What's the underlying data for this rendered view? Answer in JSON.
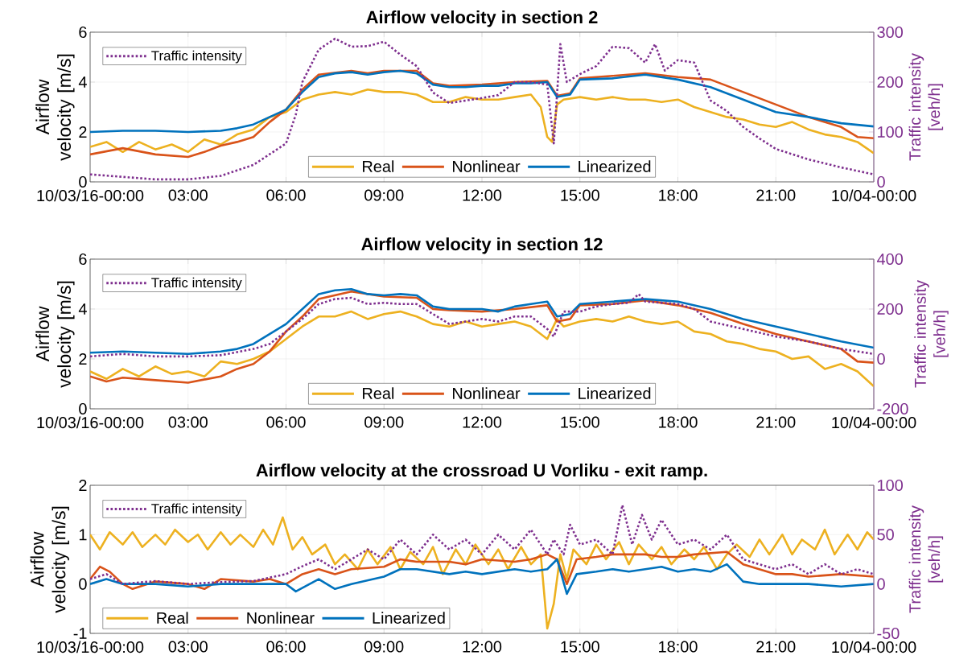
{
  "chart_data": [
    {
      "type": "line",
      "title": "Airflow velocity in section 2",
      "ylabel": "Airflow velocity [m/s]",
      "y2label": "Traffic intensity [veh/h]",
      "xlim": [
        0,
        24
      ],
      "xticks": [
        {
          "value": 0,
          "label": "10/03/16-00:00"
        },
        {
          "value": 3,
          "label": "03:00"
        },
        {
          "value": 6,
          "label": "06:00"
        },
        {
          "value": 9,
          "label": "09:00"
        },
        {
          "value": 12,
          "label": "12:00"
        },
        {
          "value": 15,
          "label": "15:00"
        },
        {
          "value": 18,
          "label": "18:00"
        },
        {
          "value": 21,
          "label": "21:00"
        },
        {
          "value": 24,
          "label": "10/04-00:00"
        }
      ],
      "ylim": [
        0,
        6
      ],
      "yticks": [
        0,
        2,
        4,
        6
      ],
      "y2lim": [
        0,
        300
      ],
      "y2ticks": [
        0,
        100,
        200,
        300
      ],
      "grid": true,
      "legend": "bottom",
      "series": [
        {
          "name": "Real",
          "color": "#edb120",
          "line_style": "solid",
          "x": [
            0,
            0.5,
            1,
            1.5,
            2,
            2.5,
            3,
            3.5,
            4,
            4.5,
            5,
            5.5,
            6,
            6.5,
            7,
            7.5,
            8,
            8.5,
            9,
            9.5,
            10,
            10.5,
            11,
            11.5,
            12,
            12.5,
            13,
            13.5,
            13.8,
            14,
            14.15,
            14.3,
            14.5,
            15,
            15.5,
            16,
            16.5,
            17,
            17.5,
            18,
            18.5,
            19,
            19.5,
            20,
            20.5,
            21,
            21.5,
            22,
            22.5,
            23,
            23.5,
            24
          ],
          "values": [
            1.4,
            1.6,
            1.2,
            1.6,
            1.3,
            1.5,
            1.2,
            1.7,
            1.5,
            1.9,
            2.1,
            2.6,
            2.8,
            3.3,
            3.5,
            3.6,
            3.5,
            3.7,
            3.6,
            3.6,
            3.5,
            3.2,
            3.2,
            3.4,
            3.3,
            3.3,
            3.4,
            3.5,
            3.0,
            1.8,
            1.6,
            3.1,
            3.3,
            3.4,
            3.3,
            3.4,
            3.3,
            3.3,
            3.2,
            3.3,
            3.0,
            2.8,
            2.6,
            2.5,
            2.3,
            2.2,
            2.4,
            2.1,
            1.9,
            1.8,
            1.6,
            1.15
          ]
        },
        {
          "name": "Nonlinear",
          "color": "#d95319",
          "line_style": "solid",
          "x": [
            0,
            1,
            2,
            3,
            3.5,
            4,
            4.5,
            5,
            5.5,
            6,
            6.5,
            7,
            8,
            8.5,
            9,
            10,
            10.5,
            11,
            12,
            13,
            14,
            14.3,
            14.7,
            15,
            16,
            17,
            18,
            19,
            20,
            21,
            22,
            23,
            23.5,
            24
          ],
          "values": [
            1.1,
            1.35,
            1.1,
            1.0,
            1.2,
            1.45,
            1.6,
            1.8,
            2.4,
            2.9,
            3.7,
            4.3,
            4.45,
            4.35,
            4.45,
            4.45,
            3.95,
            3.85,
            3.9,
            4.0,
            4.05,
            3.45,
            3.55,
            4.15,
            4.25,
            4.35,
            4.2,
            4.1,
            3.6,
            3.1,
            2.6,
            2.2,
            1.8,
            1.75
          ]
        },
        {
          "name": "Linearized",
          "color": "#0072bd",
          "line_style": "solid",
          "x": [
            0,
            1,
            2,
            3,
            4,
            4.5,
            5,
            5.5,
            6,
            6.5,
            7,
            7.5,
            8,
            8.5,
            9,
            9.5,
            10,
            10.5,
            11,
            11.5,
            12,
            12.5,
            13,
            13.5,
            14,
            14.3,
            14.7,
            15,
            16,
            17,
            18,
            19,
            20,
            21,
            22,
            23,
            24
          ],
          "values": [
            2.0,
            2.05,
            2.05,
            2.0,
            2.05,
            2.15,
            2.3,
            2.6,
            2.9,
            3.6,
            4.2,
            4.35,
            4.4,
            4.3,
            4.4,
            4.45,
            4.35,
            3.9,
            3.8,
            3.8,
            3.85,
            3.85,
            3.95,
            3.95,
            4.0,
            3.4,
            3.5,
            4.1,
            4.15,
            4.3,
            4.1,
            3.8,
            3.3,
            2.8,
            2.6,
            2.35,
            2.22
          ]
        },
        {
          "name": "Traffic intensity",
          "color": "#7e2f8e",
          "line_style": "dotted",
          "axis": "y2",
          "x": [
            0,
            1,
            2,
            3,
            4,
            5,
            6,
            6.3,
            6.5,
            7,
            7.5,
            8,
            8.5,
            9,
            9.5,
            10,
            10.5,
            11,
            11.5,
            12,
            12.5,
            13,
            13.5,
            14,
            14.2,
            14.4,
            14.6,
            15,
            15.5,
            16,
            16.5,
            17,
            17.3,
            17.6,
            18,
            18.5,
            19,
            19.5,
            20,
            20.5,
            21,
            22,
            23,
            24
          ],
          "values": [
            15,
            10,
            5,
            5,
            12,
            34,
            77,
            135,
            200,
            265,
            287,
            271,
            272,
            281,
            255,
            232,
            179,
            158,
            163,
            168,
            174,
            200,
            200,
            195,
            77,
            276,
            200,
            216,
            232,
            271,
            268,
            239,
            276,
            223,
            244,
            239,
            163,
            142,
            110,
            87,
            66,
            45,
            29,
            15
          ]
        }
      ]
    },
    {
      "type": "line",
      "title": "Airflow velocity in section 12",
      "ylabel": "Airflow velocity [m/s]",
      "y2label": "Traffic intensity [veh/h]",
      "xlim": [
        0,
        24
      ],
      "xticks": [
        {
          "value": 0,
          "label": "10/03/16-00:00"
        },
        {
          "value": 3,
          "label": "03:00"
        },
        {
          "value": 6,
          "label": "06:00"
        },
        {
          "value": 9,
          "label": "09:00"
        },
        {
          "value": 12,
          "label": "12:00"
        },
        {
          "value": 15,
          "label": "15:00"
        },
        {
          "value": 18,
          "label": "18:00"
        },
        {
          "value": 21,
          "label": "21:00"
        },
        {
          "value": 24,
          "label": "10/04-00:00"
        }
      ],
      "ylim": [
        0,
        6
      ],
      "yticks": [
        0,
        2,
        4,
        6
      ],
      "y2lim": [
        -200,
        400
      ],
      "y2ticks": [
        -200,
        0,
        200,
        400
      ],
      "grid": true,
      "legend": "bottom",
      "series": [
        {
          "name": "Real",
          "color": "#edb120",
          "line_style": "solid",
          "x": [
            0,
            0.5,
            1,
            1.5,
            2,
            2.5,
            3,
            3.5,
            4,
            4.5,
            5,
            5.5,
            6,
            6.5,
            7,
            7.5,
            8,
            8.5,
            9,
            9.5,
            10,
            10.5,
            11,
            11.5,
            12,
            12.5,
            13,
            13.5,
            14,
            14.3,
            14.5,
            15,
            15.5,
            16,
            16.5,
            17,
            17.5,
            18,
            18.5,
            19,
            19.5,
            20,
            20.5,
            21,
            21.5,
            22,
            22.5,
            23,
            23.5,
            24
          ],
          "values": [
            1.5,
            1.2,
            1.6,
            1.3,
            1.7,
            1.4,
            1.5,
            1.3,
            1.9,
            1.8,
            2.0,
            2.3,
            2.8,
            3.3,
            3.7,
            3.7,
            3.9,
            3.6,
            3.8,
            3.9,
            3.7,
            3.4,
            3.3,
            3.5,
            3.3,
            3.4,
            3.5,
            3.3,
            2.8,
            3.6,
            3.3,
            3.5,
            3.6,
            3.5,
            3.7,
            3.5,
            3.4,
            3.5,
            3.1,
            3.0,
            2.7,
            2.6,
            2.4,
            2.3,
            2.0,
            2.1,
            1.6,
            1.8,
            1.5,
            0.9
          ]
        },
        {
          "name": "Nonlinear",
          "color": "#d95319",
          "line_style": "solid",
          "x": [
            0,
            0.5,
            1,
            2,
            3,
            4,
            4.5,
            5,
            5.5,
            6,
            6.5,
            7,
            8,
            9,
            10,
            10.5,
            11,
            12,
            13,
            14,
            14.3,
            14.7,
            15,
            16,
            17,
            18,
            19,
            20,
            21,
            22,
            23,
            23.5,
            24
          ],
          "values": [
            1.3,
            1.1,
            1.25,
            1.15,
            1.05,
            1.3,
            1.6,
            1.8,
            2.3,
            3.1,
            3.7,
            4.4,
            4.7,
            4.5,
            4.45,
            4.0,
            3.95,
            3.9,
            4.0,
            4.15,
            3.5,
            3.6,
            4.15,
            4.2,
            4.35,
            4.15,
            3.85,
            3.4,
            3.0,
            2.7,
            2.4,
            1.9,
            1.85
          ]
        },
        {
          "name": "Linearized",
          "color": "#0072bd",
          "line_style": "solid",
          "x": [
            0,
            1,
            2,
            3,
            4,
            4.5,
            5,
            5.5,
            6,
            6.5,
            7,
            7.5,
            8,
            8.5,
            9,
            9.5,
            10,
            10.5,
            11,
            12,
            12.5,
            13,
            13.5,
            14,
            14.3,
            14.7,
            15,
            16,
            17,
            18,
            19,
            20,
            21,
            22,
            23,
            24
          ],
          "values": [
            2.25,
            2.3,
            2.25,
            2.2,
            2.3,
            2.4,
            2.6,
            3.0,
            3.4,
            4.0,
            4.6,
            4.75,
            4.8,
            4.6,
            4.55,
            4.6,
            4.55,
            4.1,
            4.0,
            4.0,
            3.9,
            4.1,
            4.2,
            4.3,
            3.7,
            3.8,
            4.2,
            4.3,
            4.4,
            4.3,
            4.0,
            3.6,
            3.3,
            3.0,
            2.7,
            2.45
          ]
        },
        {
          "name": "Traffic intensity",
          "color": "#7e2f8e",
          "line_style": "dotted",
          "axis": "y2",
          "x": [
            0,
            1,
            2,
            3,
            4,
            5,
            5.5,
            6,
            6.5,
            7,
            7.5,
            8,
            8.5,
            9,
            9.5,
            10,
            10.5,
            11,
            12,
            12.5,
            13,
            13.5,
            14,
            14.2,
            14.5,
            15,
            15.5,
            16,
            16.5,
            16.8,
            17,
            18,
            18.5,
            19,
            20,
            21,
            22,
            23,
            24
          ],
          "values": [
            10,
            20,
            10,
            10,
            15,
            40,
            60,
            110,
            160,
            220,
            240,
            245,
            220,
            225,
            220,
            220,
            180,
            140,
            160,
            150,
            170,
            170,
            120,
            90,
            190,
            190,
            210,
            220,
            225,
            260,
            230,
            220,
            200,
            150,
            120,
            90,
            70,
            40,
            20
          ]
        }
      ]
    },
    {
      "type": "line",
      "title": "Airflow velocity at the crossroad U Vorliku - exit ramp.",
      "ylabel": "Airflow velocity [m/s]",
      "y2label": "Traffic intensity [veh/h]",
      "xlim": [
        0,
        24
      ],
      "xticks": [
        {
          "value": 0,
          "label": "10/03/16-00:00"
        },
        {
          "value": 3,
          "label": "03:00"
        },
        {
          "value": 6,
          "label": "06:00"
        },
        {
          "value": 9,
          "label": "09:00"
        },
        {
          "value": 12,
          "label": "12:00"
        },
        {
          "value": 15,
          "label": "15:00"
        },
        {
          "value": 18,
          "label": "18:00"
        },
        {
          "value": 21,
          "label": "21:00"
        },
        {
          "value": 24,
          "label": "10/04-00:00"
        }
      ],
      "ylim": [
        -1,
        2
      ],
      "yticks": [
        -1,
        0,
        1,
        2
      ],
      "y2lim": [
        -50,
        100
      ],
      "y2ticks": [
        -50,
        0,
        50,
        100
      ],
      "grid": true,
      "legend": "bottom left",
      "series": [
        {
          "name": "Real",
          "color": "#edb120",
          "line_style": "solid",
          "x": [
            0,
            0.3,
            0.6,
            1,
            1.3,
            1.6,
            2,
            2.3,
            2.6,
            3,
            3.3,
            3.6,
            4,
            4.3,
            4.6,
            5,
            5.3,
            5.6,
            5.9,
            6.2,
            6.5,
            6.8,
            7.2,
            7.5,
            7.8,
            8.2,
            8.5,
            8.8,
            9.2,
            9.5,
            9.8,
            10.2,
            10.5,
            10.8,
            11.2,
            11.5,
            11.8,
            12.2,
            12.5,
            12.8,
            13.2,
            13.5,
            13.8,
            14,
            14.2,
            14.4,
            14.6,
            14.8,
            15.2,
            15.5,
            15.8,
            16.2,
            16.5,
            16.8,
            17.2,
            17.5,
            17.8,
            18.2,
            18.5,
            18.8,
            19.2,
            19.5,
            19.8,
            20.2,
            20.5,
            20.8,
            21.2,
            21.5,
            21.8,
            22.2,
            22.5,
            22.8,
            23.2,
            23.5,
            23.8,
            24
          ],
          "values": [
            1.0,
            0.7,
            1.05,
            0.8,
            1.05,
            0.75,
            1.0,
            0.8,
            1.1,
            0.85,
            1.0,
            0.7,
            1.05,
            0.8,
            1.0,
            0.75,
            1.1,
            0.8,
            1.35,
            0.7,
            0.95,
            0.6,
            0.8,
            0.4,
            0.6,
            0.3,
            0.7,
            0.4,
            0.75,
            0.3,
            0.65,
            0.4,
            0.75,
            0.2,
            0.7,
            0.4,
            0.8,
            0.4,
            0.7,
            0.3,
            0.75,
            0.4,
            0.6,
            -0.9,
            -0.4,
            0.6,
            0.1,
            0.7,
            0.4,
            0.8,
            0.5,
            0.85,
            0.4,
            0.8,
            0.5,
            0.75,
            0.4,
            0.7,
            0.5,
            0.75,
            0.3,
            0.6,
            0.8,
            0.55,
            0.9,
            0.6,
            1.0,
            0.6,
            0.9,
            0.7,
            1.1,
            0.6,
            1.0,
            0.7,
            1.05,
            0.9
          ]
        },
        {
          "name": "Nonlinear",
          "color": "#d95319",
          "line_style": "solid",
          "x": [
            0,
            0.3,
            0.6,
            1,
            1.3,
            2,
            3,
            3.5,
            4,
            5,
            5.5,
            6,
            6.5,
            7,
            7.5,
            8,
            9,
            9.5,
            10,
            11,
            11.5,
            12,
            13,
            13.5,
            14,
            14.3,
            14.6,
            14.9,
            15.5,
            16,
            17,
            17.5,
            18,
            18.5,
            19.5,
            20,
            20.5,
            21,
            21.5,
            22,
            23,
            24
          ],
          "values": [
            0.1,
            0.35,
            0.25,
            0.0,
            -0.1,
            0.05,
            0.0,
            -0.1,
            0.1,
            0.05,
            0.1,
            0.0,
            0.2,
            0.3,
            0.2,
            0.3,
            0.35,
            0.5,
            0.45,
            0.45,
            0.4,
            0.5,
            0.45,
            0.5,
            0.6,
            0.5,
            0.0,
            0.5,
            0.55,
            0.6,
            0.6,
            0.55,
            0.55,
            0.6,
            0.65,
            0.4,
            0.3,
            0.2,
            0.2,
            0.15,
            0.2,
            0.15
          ]
        },
        {
          "name": "Linearized",
          "color": "#0072bd",
          "line_style": "solid",
          "x": [
            0,
            0.5,
            1,
            2,
            3,
            4,
            5,
            6,
            6.3,
            7,
            7.5,
            8,
            9,
            9.5,
            10,
            11,
            11.5,
            12,
            13,
            13.5,
            14,
            14.3,
            14.6,
            14.9,
            15.5,
            16,
            16.5,
            17,
            17.5,
            18,
            18.5,
            19,
            19.5,
            20,
            20.5,
            21,
            22,
            23,
            24
          ],
          "values": [
            0.0,
            0.1,
            0.0,
            0.0,
            -0.05,
            0.0,
            0.0,
            0.0,
            -0.15,
            0.1,
            -0.1,
            0.0,
            0.15,
            0.3,
            0.3,
            0.2,
            0.25,
            0.2,
            0.3,
            0.25,
            0.3,
            0.5,
            -0.2,
            0.2,
            0.25,
            0.3,
            0.25,
            0.3,
            0.35,
            0.25,
            0.3,
            0.25,
            0.4,
            0.05,
            0.0,
            0.0,
            0.0,
            -0.05,
            0.0
          ]
        },
        {
          "name": "Traffic intensity",
          "color": "#7e2f8e",
          "line_style": "dotted",
          "axis": "y2",
          "x": [
            0,
            0.5,
            1,
            2,
            3,
            4,
            5,
            6,
            6.5,
            7,
            7.5,
            8,
            8.5,
            9,
            9.5,
            10,
            10.5,
            11,
            11.5,
            12,
            12.5,
            13,
            13.5,
            14,
            14.2,
            14.5,
            14.7,
            15,
            15.5,
            16,
            16.3,
            16.6,
            16.9,
            17.2,
            17.5,
            18,
            18.5,
            19,
            19.5,
            20,
            20.5,
            21,
            21.5,
            22,
            22.5,
            23,
            23.5,
            24
          ],
          "values": [
            5,
            10,
            0,
            3,
            0,
            2,
            3,
            10,
            18,
            25,
            15,
            25,
            35,
            25,
            45,
            30,
            50,
            35,
            45,
            30,
            50,
            35,
            55,
            30,
            45,
            30,
            60,
            40,
            45,
            30,
            80,
            40,
            70,
            45,
            65,
            40,
            45,
            35,
            50,
            25,
            20,
            15,
            20,
            10,
            20,
            10,
            15,
            10
          ]
        }
      ]
    }
  ]
}
